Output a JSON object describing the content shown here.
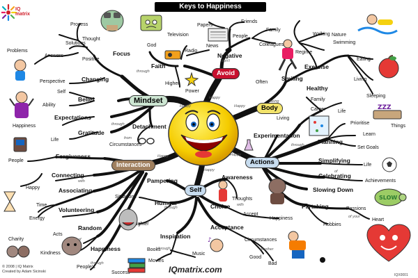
{
  "title": "Keys to Happiness",
  "logo": {
    "line1": "IQ",
    "line2": "matrix"
  },
  "website": "IQmatrix.com",
  "footer": {
    "copyright": "© 2008 | IQ Matrix",
    "author": "Created by Adam Sicinski"
  },
  "code": "IQX0001",
  "colors": {
    "mindset": "#cde6d2",
    "avoid": "#c8102e",
    "body": "#f2e36b",
    "actions": "#c7dcef",
    "self": "#c7dcef",
    "interaction": "#a0805f",
    "pill_border": "#333333"
  },
  "main_branches": {
    "avoid": "Avoid",
    "mindset": "Mindset",
    "body": "Body",
    "actions": "Actions",
    "self": "Self",
    "interaction": "Interaction"
  },
  "connectors": {
    "happy": "Happy",
    "through": "through",
    "of": "of",
    "being": "being",
    "with": "with",
    "to": "to",
    "for": "for",
    "on": "on",
    "feeling": "feeling",
    "your": "your",
    "whether": "whether",
    "of_your": "of your",
    "don't": "don't"
  },
  "nodes": {
    "process": "Process",
    "thought": "Thought",
    "solutions": "Solutions",
    "problems": "Problems",
    "answers": "Answers",
    "positive": "Positive",
    "focus": "Focus",
    "god": "God",
    "faith": "Faith",
    "higher": "Higher",
    "power": "Power",
    "television": "Television",
    "radio": "Radio",
    "papers": "Papers",
    "news": "News",
    "friends": "Friends",
    "people_top": "People",
    "family_top": "Family",
    "colleagues": "Colleagues",
    "negative": "Negative",
    "nature": "Nature",
    "walking": "Walking",
    "swimming": "Swimming",
    "regime": "Regime",
    "exercise": "Exercise",
    "eating": "Eating",
    "living": "Living",
    "sleeping": "Sleeping",
    "healthy": "Healthy",
    "often": "Often",
    "smiling": "Smiling",
    "family_mid": "Family",
    "career": "Career",
    "life_mid": "Life",
    "living_body": "Living",
    "experimentation": "Experimentation",
    "prioritise": "Prioritise",
    "things": "Things",
    "learn": "Learn",
    "set_goals": "Set Goals",
    "planning": "Planning",
    "simplifying": "Simplifying",
    "life_actions": "Life",
    "celebrating": "Celebrating",
    "achievements": "Achievements",
    "slowing_down": "Slowing Down",
    "partaking": "Partaking",
    "passions": "Passions",
    "heart": "Heart",
    "hobbies": "Hobbies",
    "changing": "Changing",
    "perspective": "Perspective",
    "self_m": "Self",
    "ability": "Ability",
    "belief": "Belief",
    "expectations": "Expectations",
    "happiness_m": "Happiness",
    "gratitude": "Gratitude",
    "life_m": "Life",
    "detachment": "Detachment",
    "circumstances_m": "Circumstances",
    "from": "from",
    "awareness": "Awareness",
    "thoughts": "Thoughts",
    "choice": "Choice",
    "accept": "Accept",
    "happiness_s": "Happiness",
    "pampering": "Pampering",
    "situations": "Situations",
    "humour": "Humour",
    "laughter": "Laughter",
    "inspiration": "Inspiration",
    "acceptance": "Acceptance",
    "circumstances_s": "Circumstances",
    "books": "Books",
    "music": "Music",
    "movies": "Movies",
    "good": "Good",
    "bad": "Bad",
    "forgiveness": "Forgiveness",
    "people_i": "People",
    "connecting": "Connecting",
    "happy_i": "Happy",
    "associating": "Associating",
    "time": "Time",
    "energy": "Energy",
    "volunteering": "Volunteering",
    "random": "Random",
    "acts": "Acts",
    "charity": "Charity",
    "kindness": "Kindness",
    "happiness_i": "Happiness",
    "peoples": "People's",
    "success": "Success"
  }
}
